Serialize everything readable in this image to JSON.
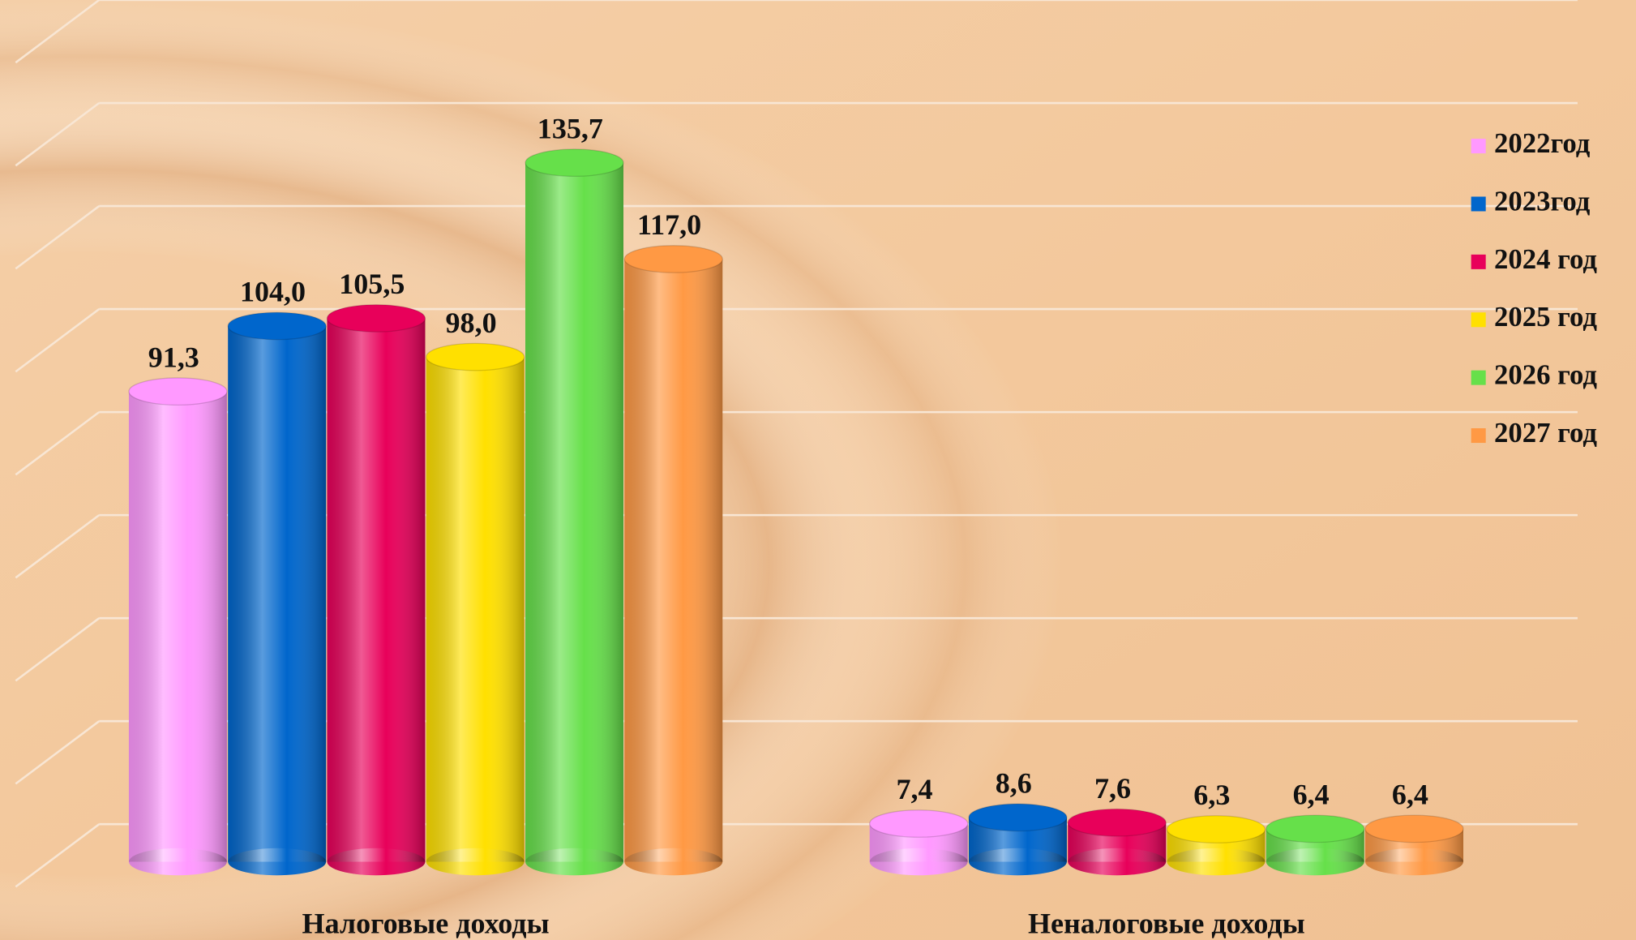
{
  "chart_data": {
    "type": "bar",
    "categories": [
      "Налоговые доходы",
      "Неналоговые доходы"
    ],
    "series": [
      {
        "name": "2022год",
        "color": "#ff99ff",
        "values": [
          91.3,
          7.4
        ],
        "value_labels": [
          "91,3",
          "7,4"
        ]
      },
      {
        "name": "2023год",
        "color": "#0066cc",
        "values": [
          104.0,
          8.6
        ],
        "value_labels": [
          "104,0",
          "8,6"
        ]
      },
      {
        "name": "2024 год",
        "color": "#e8005a",
        "values": [
          105.5,
          7.6
        ],
        "value_labels": [
          "105,5",
          "7,6"
        ]
      },
      {
        "name": "2025 год",
        "color": "#ffe000",
        "values": [
          98.0,
          6.3
        ],
        "value_labels": [
          "98,0",
          "6,3"
        ]
      },
      {
        "name": "2026 год",
        "color": "#66e04a",
        "values": [
          135.7,
          6.4
        ],
        "value_labels": [
          "135,7",
          "6,4"
        ]
      },
      {
        "name": "2027 год",
        "color": "#ff9944",
        "values": [
          117.0,
          6.4
        ],
        "value_labels": [
          "117,0",
          "6,4"
        ]
      }
    ],
    "ylim": [
      0,
      160
    ],
    "yticks": [
      0,
      20,
      40,
      60,
      80,
      100,
      120,
      140,
      160
    ],
    "grid": true,
    "legend": "right"
  }
}
